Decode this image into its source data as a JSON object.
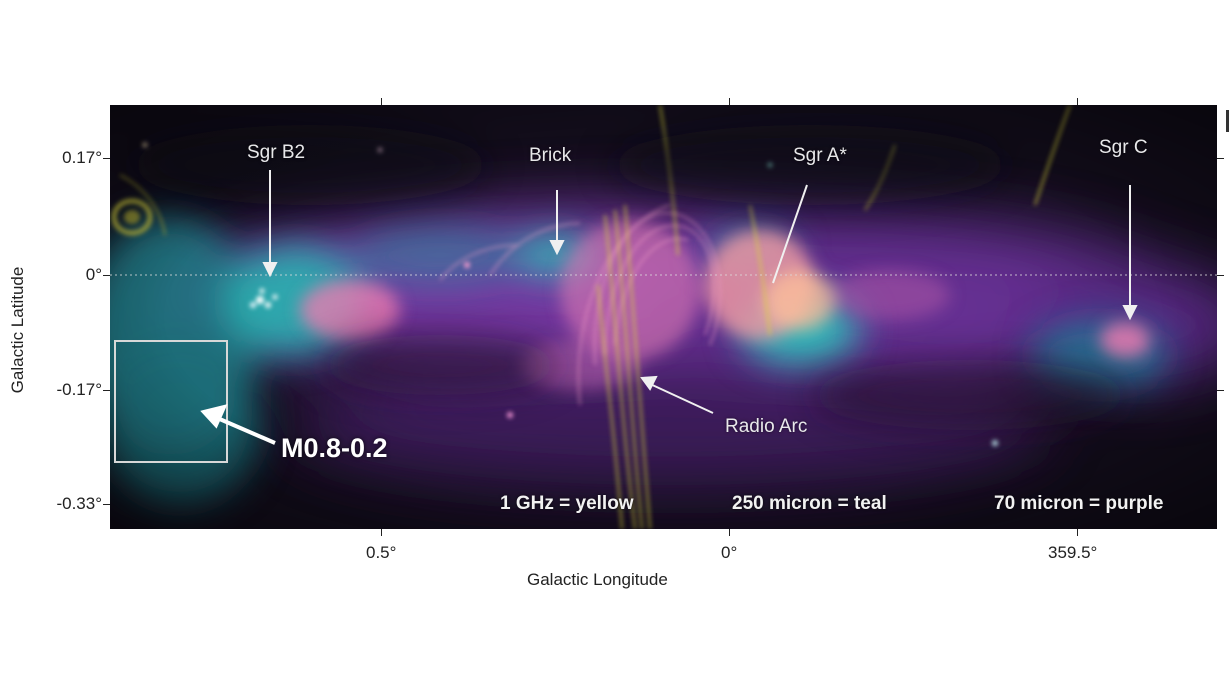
{
  "axes": {
    "x_title": "Galactic Longitude",
    "y_title": "Galactic Latitude",
    "x_ticks": [
      "0.5°",
      "0°",
      "359.5°"
    ],
    "y_ticks": [
      "0.17°",
      "0°",
      "-0.17°",
      "-0.33°"
    ]
  },
  "labels": {
    "sgr_b2": "Sgr B2",
    "brick": "Brick",
    "sgr_a": "Sgr A*",
    "sgr_c": "Sgr C",
    "radio_arc": "Radio Arc",
    "m08": "M0.8-0.2"
  },
  "legend": {
    "yellow": "1 GHz = yellow",
    "teal": "250 micron = teal",
    "purple": "70 micron  = purple"
  },
  "colors": {
    "yellow": "#d6d23a",
    "teal": "#2fc7c0",
    "purple": "#8a3fc0",
    "pink": "#f07ab0"
  }
}
